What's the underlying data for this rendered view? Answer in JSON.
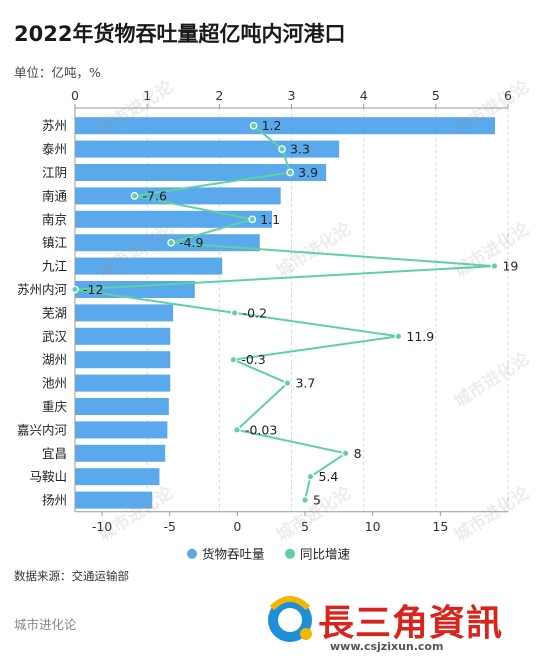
{
  "title": "2022年货物吞吐量超亿吨内河港口",
  "unit_label": "单位：亿吨，%",
  "source": "数据来源：交通运输部",
  "brand": "城市进化论",
  "watermark": "城市进化论",
  "logo": {
    "text": "長三角資訊",
    "url": "www.csjzixun.com"
  },
  "chart_data": {
    "type": "bar",
    "orientation": "horizontal",
    "categories": [
      "苏州",
      "泰州",
      "江阴",
      "南通",
      "南京",
      "镇江",
      "九江",
      "苏州内河",
      "芜湖",
      "武汉",
      "湖州",
      "池州",
      "重庆",
      "嘉兴内河",
      "宜昌",
      "马鞍山",
      "扬州"
    ],
    "series": [
      {
        "name": "货物吞吐量",
        "axis": "top",
        "values": [
          5.82,
          3.66,
          3.48,
          2.85,
          2.73,
          2.56,
          2.04,
          1.66,
          1.36,
          1.32,
          1.32,
          1.32,
          1.3,
          1.28,
          1.25,
          1.17,
          1.07
        ],
        "color": "#5aa9ec"
      },
      {
        "name": "同比增速",
        "axis": "bottom",
        "type": "line",
        "values": [
          1.2,
          3.3,
          3.9,
          -7.6,
          1.1,
          -4.9,
          19,
          -12,
          -0.2,
          11.9,
          -0.3,
          3.7,
          null,
          -0.03,
          8,
          5.4,
          5
        ],
        "labels": [
          "1.2",
          "3.3",
          "3.9",
          "-7.6",
          "1.1",
          "-4.9",
          "19",
          "-12",
          "-0.2",
          "11.9",
          "-0.3",
          "3.7",
          "",
          "-0.03",
          "8",
          "5.4",
          "5"
        ],
        "color": "#5fd1a3"
      }
    ],
    "top_axis": {
      "min": 0,
      "max": 6,
      "ticks": [
        0,
        1,
        2,
        3,
        4,
        5,
        6
      ]
    },
    "bottom_axis": {
      "min": -12,
      "max": 20,
      "ticks": [
        -10,
        -5,
        0,
        5,
        10,
        15
      ]
    },
    "grid": true,
    "legend_position": "bottom"
  }
}
